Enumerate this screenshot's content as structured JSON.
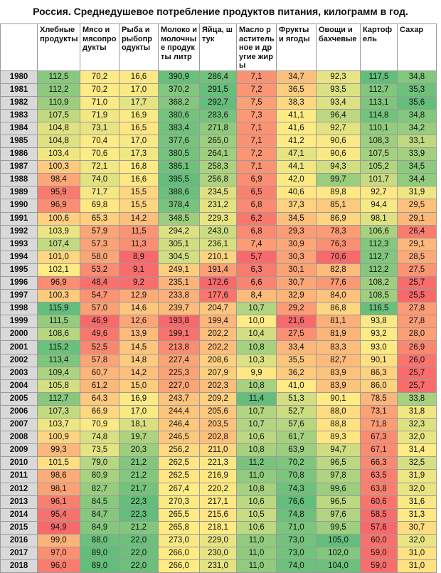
{
  "title": "Россия. Среднедушевое потребление продуктов питания, килограмм в год.",
  "chart_data": {
    "type": "table",
    "title": "Россия. Среднедушевое потребление продуктов питания, килограмм в год.",
    "columns": [
      "Хлебные продукты",
      "Мясо и мясопродукты",
      "Рыба и рыбопродукты",
      "Молоко и молочные продукты литр",
      "Яйца, штук",
      "Масло растительное и другие жиры",
      "Фрукты и ягоды",
      "Овощи и бахчевые",
      "Картофель",
      "Сахар"
    ],
    "years": [
      "1980",
      "1981",
      "1982",
      "1983",
      "1984",
      "1985",
      "1986",
      "1987",
      "1988",
      "1989",
      "1990",
      "1991",
      "1992",
      "1993",
      "1994",
      "1995",
      "1996",
      "1997",
      "1998",
      "1999",
      "2000",
      "2001",
      "2002",
      "2003",
      "2004",
      "2005",
      "2006",
      "2007",
      "2008",
      "2009",
      "2010",
      "2011",
      "2012",
      "2013",
      "2014",
      "2015",
      "2016",
      "2017",
      "2018"
    ],
    "rows": [
      [
        "112,5",
        "70,2",
        "16,6",
        "390,9",
        "286,4",
        "7,1",
        "34,7",
        "92,3",
        "117,5",
        "34,8"
      ],
      [
        "112,2",
        "70,2",
        "17,0",
        "370,2",
        "291,5",
        "7,2",
        "36,5",
        "93,5",
        "112,7",
        "35,3"
      ],
      [
        "110,9",
        "71,0",
        "17,7",
        "368,2",
        "292,7",
        "7,5",
        "38,3",
        "93,4",
        "113,1",
        "35,6"
      ],
      [
        "107,5",
        "71,9",
        "16,9",
        "380,6",
        "283,6",
        "7,3",
        "41,1",
        "96,4",
        "114,8",
        "34,8"
      ],
      [
        "104,8",
        "73,1",
        "16,5",
        "383,4",
        "271,8",
        "7,1",
        "41,6",
        "92,7",
        "110,1",
        "34,2"
      ],
      [
        "104,8",
        "70,4",
        "17,0",
        "377,6",
        "265,0",
        "7,1",
        "41,2",
        "90,6",
        "108,3",
        "33,1"
      ],
      [
        "103,4",
        "70,6",
        "17,3",
        "380,5",
        "264,1",
        "7,2",
        "47,1",
        "90,6",
        "107,5",
        "33,9"
      ],
      [
        "100,3",
        "72,1",
        "16,8",
        "386,1",
        "258,3",
        "7,1",
        "44,1",
        "94,3",
        "105,2",
        "34,5"
      ],
      [
        "98,4",
        "74,0",
        "16,6",
        "395,5",
        "256,8",
        "6,9",
        "42,0",
        "99,7",
        "101,7",
        "34,4"
      ],
      [
        "95,9",
        "71,7",
        "15,5",
        "388,6",
        "234,5",
        "6,5",
        "40,6",
        "89,8",
        "92,7",
        "31,9"
      ],
      [
        "96,9",
        "69,8",
        "15,5",
        "378,4",
        "231,2",
        "6,8",
        "37,3",
        "85,1",
        "94,4",
        "29,5"
      ],
      [
        "100,6",
        "65,3",
        "14,2",
        "348,5",
        "229,3",
        "6,2",
        "34,5",
        "86,9",
        "98,1",
        "29,1"
      ],
      [
        "103,9",
        "57,9",
        "11,5",
        "294,2",
        "243,0",
        "6,8",
        "29,3",
        "78,3",
        "106,6",
        "26,4"
      ],
      [
        "107,4",
        "57,3",
        "11,3",
        "305,1",
        "236,1",
        "7,4",
        "30,9",
        "76,3",
        "112,3",
        "29,1"
      ],
      [
        "101,0",
        "58,0",
        "8,9",
        "304,5",
        "210,1",
        "5,7",
        "30,3",
        "70,6",
        "112,7",
        "28,5"
      ],
      [
        "102,1",
        "53,2",
        "9,1",
        "249,1",
        "191,4",
        "6,3",
        "30,1",
        "82,8",
        "112,2",
        "27,5"
      ],
      [
        "96,9",
        "48,4",
        "9,2",
        "235,1",
        "172,6",
        "6,6",
        "30,7",
        "77,6",
        "108,2",
        "25,7"
      ],
      [
        "100,3",
        "54,7",
        "12,9",
        "233,8",
        "177,6",
        "8,4",
        "32,9",
        "84,0",
        "108,5",
        "25,5"
      ],
      [
        "115,9",
        "57,0",
        "14,6",
        "239,7",
        "204,7",
        "10,7",
        "29,2",
        "86,8",
        "116,5",
        "27,8"
      ],
      [
        "111,5",
        "46,9",
        "12,6",
        "193,8",
        "199,4",
        "10,0",
        "21,6",
        "81,1",
        "93,8",
        "27,8"
      ],
      [
        "108,6",
        "49,6",
        "13,9",
        "199,1",
        "202,2",
        "10,4",
        "27,5",
        "81,9",
        "93,2",
        "28,0"
      ],
      [
        "115,2",
        "52,5",
        "14,5",
        "213,8",
        "202,2",
        "10,8",
        "33,4",
        "83,3",
        "93,0",
        "26,9"
      ],
      [
        "113,4",
        "57,8",
        "14,8",
        "227,4",
        "208,6",
        "10,3",
        "35,5",
        "82,7",
        "90,1",
        "26,0"
      ],
      [
        "109,4",
        "60,7",
        "14,2",
        "225,3",
        "207,9",
        "9,9",
        "36,2",
        "83,9",
        "86,3",
        "25,7"
      ],
      [
        "105,8",
        "61,2",
        "15,0",
        "227,0",
        "202,3",
        "10,8",
        "41,0",
        "83,9",
        "86,0",
        "25,7"
      ],
      [
        "112,7",
        "64,3",
        "16,9",
        "243,7",
        "209,2",
        "11,4",
        "51,3",
        "90,1",
        "78,5",
        "33,8"
      ],
      [
        "107,3",
        "66,9",
        "17,0",
        "244,4",
        "205,6",
        "10,7",
        "52,7",
        "88,0",
        "73,1",
        "31,8"
      ],
      [
        "103,7",
        "70,9",
        "18,1",
        "246,4",
        "203,5",
        "10,7",
        "57,6",
        "88,8",
        "71,8",
        "32,3"
      ],
      [
        "100,9",
        "74,8",
        "19,7",
        "246,5",
        "202,8",
        "10,6",
        "61,7",
        "89,3",
        "67,3",
        "32,0"
      ],
      [
        "99,3",
        "73,5",
        "20,3",
        "256,2",
        "211,0",
        "10,8",
        "63,9",
        "94,7",
        "67,1",
        "31,4"
      ],
      [
        "101,5",
        "79,0",
        "21,2",
        "262,5",
        "221,3",
        "11,2",
        "70,2",
        "96,5",
        "66,3",
        "32,5"
      ],
      [
        "98,6",
        "80,9",
        "21,2",
        "262,5",
        "216,9",
        "11,0",
        "70,8",
        "97,8",
        "63,5",
        "31,9"
      ],
      [
        "98,1",
        "82,7",
        "21,7",
        "267,4",
        "220,2",
        "10,8",
        "74,3",
        "99,6",
        "63,8",
        "32,0"
      ],
      [
        "96,1",
        "84,5",
        "22,3",
        "270,3",
        "217,1",
        "10,6",
        "76,6",
        "96,5",
        "60,6",
        "31,6"
      ],
      [
        "95,4",
        "84,7",
        "22,3",
        "265,5",
        "215,6",
        "10,5",
        "74,8",
        "97,6",
        "58,5",
        "31,3"
      ],
      [
        "94,9",
        "84,9",
        "21,2",
        "265,8",
        "218,1",
        "10,6",
        "71,0",
        "99,5",
        "57,6",
        "30,7"
      ],
      [
        "99,0",
        "88,0",
        "22,0",
        "273,0",
        "229,0",
        "11,0",
        "73,0",
        "105,0",
        "60,0",
        "32,0"
      ],
      [
        "97,0",
        "89,0",
        "22,0",
        "266,0",
        "230,0",
        "11,0",
        "73,0",
        "102,0",
        "59,0",
        "31,0"
      ],
      [
        "96,0",
        "89,0",
        "22,0",
        "266,0",
        "231,0",
        "11,0",
        "74,0",
        "104,0",
        "59,0",
        "31,0"
      ]
    ],
    "color_scale": {
      "low": "#f8696b",
      "mid": "#ffeb84",
      "high": "#63be7b"
    }
  }
}
